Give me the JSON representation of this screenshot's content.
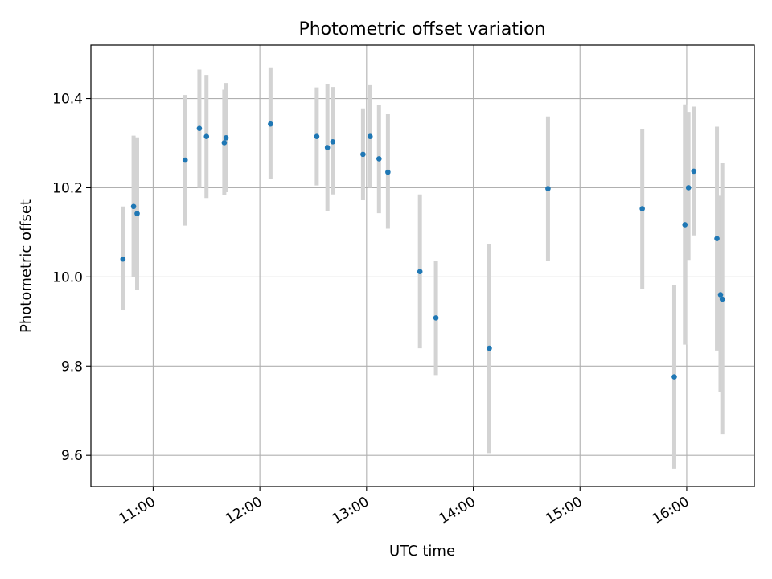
{
  "chart_data": {
    "type": "scatter",
    "title": "Photometric offset variation",
    "xlabel": "UTC time",
    "ylabel": "Photometric offset",
    "x_unit": "UTC hours",
    "xlim": [
      "10:25",
      "16:38"
    ],
    "ylim": [
      9.53,
      10.52
    ],
    "xticks": [
      "11:00",
      "12:00",
      "13:00",
      "14:00",
      "15:00",
      "16:00"
    ],
    "yticks": [
      "9.6",
      "9.8",
      "10.0",
      "10.2",
      "10.4"
    ],
    "grid": true,
    "legend": false,
    "colors": {
      "point": "#1f77b4",
      "errorbar": "#d3d3d3",
      "grid": "#b0b0b0"
    },
    "points": [
      {
        "x": "10:43",
        "y": 10.04,
        "yerr_low": 9.925,
        "yerr_high": 10.158
      },
      {
        "x": "10:49",
        "y": 10.158,
        "yerr_low": 10.0,
        "yerr_high": 10.317
      },
      {
        "x": "10:51",
        "y": 10.142,
        "yerr_low": 9.97,
        "yerr_high": 10.313
      },
      {
        "x": "11:18",
        "y": 10.262,
        "yerr_low": 10.115,
        "yerr_high": 10.408
      },
      {
        "x": "11:26",
        "y": 10.333,
        "yerr_low": 10.2,
        "yerr_high": 10.465
      },
      {
        "x": "11:30",
        "y": 10.315,
        "yerr_low": 10.177,
        "yerr_high": 10.453
      },
      {
        "x": "11:40",
        "y": 10.301,
        "yerr_low": 10.183,
        "yerr_high": 10.42
      },
      {
        "x": "11:41",
        "y": 10.312,
        "yerr_low": 10.19,
        "yerr_high": 10.435
      },
      {
        "x": "12:06",
        "y": 10.343,
        "yerr_low": 10.22,
        "yerr_high": 10.47
      },
      {
        "x": "12:32",
        "y": 10.315,
        "yerr_low": 10.205,
        "yerr_high": 10.425
      },
      {
        "x": "12:38",
        "y": 10.29,
        "yerr_low": 10.148,
        "yerr_high": 10.433
      },
      {
        "x": "12:41",
        "y": 10.303,
        "yerr_low": 10.185,
        "yerr_high": 10.426
      },
      {
        "x": "12:58",
        "y": 10.275,
        "yerr_low": 10.172,
        "yerr_high": 10.378
      },
      {
        "x": "13:02",
        "y": 10.315,
        "yerr_low": 10.2,
        "yerr_high": 10.43
      },
      {
        "x": "13:07",
        "y": 10.265,
        "yerr_low": 10.143,
        "yerr_high": 10.385
      },
      {
        "x": "13:12",
        "y": 10.235,
        "yerr_low": 10.108,
        "yerr_high": 10.365
      },
      {
        "x": "13:30",
        "y": 10.012,
        "yerr_low": 9.84,
        "yerr_high": 10.185
      },
      {
        "x": "13:39",
        "y": 9.908,
        "yerr_low": 9.78,
        "yerr_high": 10.035
      },
      {
        "x": "14:09",
        "y": 9.84,
        "yerr_low": 9.605,
        "yerr_high": 10.073
      },
      {
        "x": "14:42",
        "y": 10.198,
        "yerr_low": 10.035,
        "yerr_high": 10.36
      },
      {
        "x": "15:35",
        "y": 10.153,
        "yerr_low": 9.973,
        "yerr_high": 10.332
      },
      {
        "x": "15:53",
        "y": 9.776,
        "yerr_low": 9.57,
        "yerr_high": 9.982
      },
      {
        "x": "15:59",
        "y": 10.117,
        "yerr_low": 9.848,
        "yerr_high": 10.387
      },
      {
        "x": "16:01",
        "y": 10.2,
        "yerr_low": 10.038,
        "yerr_high": 10.37
      },
      {
        "x": "16:04",
        "y": 10.237,
        "yerr_low": 10.093,
        "yerr_high": 10.382
      },
      {
        "x": "16:17",
        "y": 10.086,
        "yerr_low": 9.835,
        "yerr_high": 10.337
      },
      {
        "x": "16:19",
        "y": 9.96,
        "yerr_low": 9.742,
        "yerr_high": 10.182
      },
      {
        "x": "16:20",
        "y": 9.95,
        "yerr_low": 9.647,
        "yerr_high": 10.255
      }
    ]
  }
}
